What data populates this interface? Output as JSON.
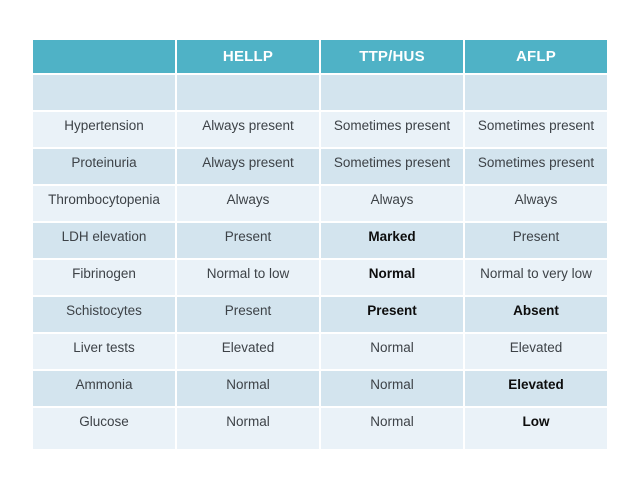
{
  "colors": {
    "header_bg": "#4fb2c6",
    "header_text": "#ffffff",
    "row_dark": "#d3e4ee",
    "row_light": "#eaf2f8",
    "cell_text": "#3d4247",
    "bold_text": "#0d0d0d"
  },
  "table": {
    "columns": [
      {
        "id": "parameter",
        "label": ""
      },
      {
        "id": "hellp",
        "label": "HELLP"
      },
      {
        "id": "ttp-hus",
        "label": "TTP/HUS"
      },
      {
        "id": "aflp",
        "label": "AFLP"
      }
    ],
    "rows": [
      {
        "label": "",
        "empty": true,
        "cells": [
          {
            "t": ""
          },
          {
            "t": ""
          },
          {
            "t": ""
          }
        ]
      },
      {
        "label": "Hypertension",
        "cells": [
          {
            "t": "Always present"
          },
          {
            "t": "Sometimes present"
          },
          {
            "t": "Sometimes present"
          }
        ]
      },
      {
        "label": "Proteinuria",
        "cells": [
          {
            "t": "Always present"
          },
          {
            "t": "Sometimes present"
          },
          {
            "t": "Sometimes present"
          }
        ]
      },
      {
        "label": "Thrombocytopenia",
        "cells": [
          {
            "t": "Always"
          },
          {
            "t": "Always"
          },
          {
            "t": "Always"
          }
        ]
      },
      {
        "label": "LDH elevation",
        "cells": [
          {
            "t": "Present"
          },
          {
            "t": "Marked",
            "b": true
          },
          {
            "t": "Present"
          }
        ]
      },
      {
        "label": "Fibrinogen",
        "cells": [
          {
            "t": "Normal to low"
          },
          {
            "t": "Normal",
            "b": true
          },
          {
            "t": "Normal to very low"
          }
        ]
      },
      {
        "label": "Schistocytes",
        "cells": [
          {
            "t": "Present"
          },
          {
            "t": "Present",
            "b": true
          },
          {
            "t": "Absent",
            "b": true
          }
        ]
      },
      {
        "label": "Liver tests",
        "cells": [
          {
            "t": "Elevated"
          },
          {
            "t": "Normal"
          },
          {
            "t": "Elevated"
          }
        ]
      },
      {
        "label": "Ammonia",
        "cells": [
          {
            "t": "Normal"
          },
          {
            "t": "Normal"
          },
          {
            "t": "Elevated",
            "b": true
          }
        ]
      },
      {
        "label": "Glucose",
        "cells": [
          {
            "t": "Normal"
          },
          {
            "t": "Normal"
          },
          {
            "t": "Low",
            "b": true
          }
        ]
      }
    ]
  }
}
